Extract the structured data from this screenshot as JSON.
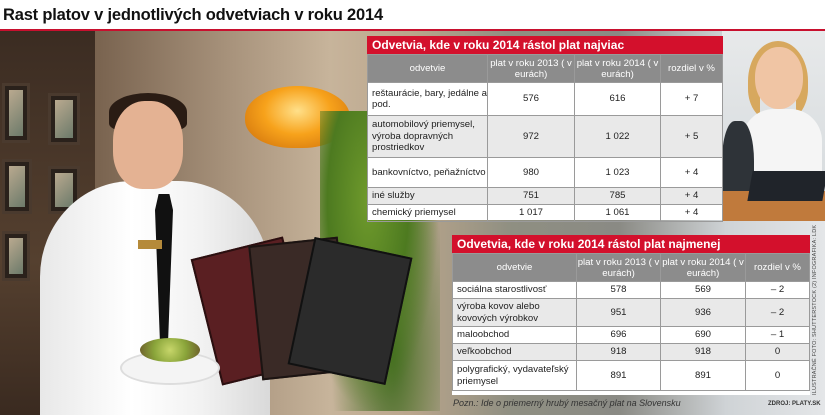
{
  "title": "Rast platov v jednotlivých odvetviach v roku 2014",
  "colors": {
    "accent": "#d3102c",
    "header_gray": "#8c8c8c",
    "row_alt": "#e9e9e9"
  },
  "top_table": {
    "heading": "Odvetvia, kde v roku 2014 rástol plat najviac",
    "columns": [
      "odvetvie",
      "plat v roku 2013 ( v eurách)",
      "plat v roku 2014 ( v eurách)",
      "rozdiel v %"
    ],
    "rows": [
      {
        "sector": "reštaurácie, bary, jedálne a pod.",
        "y2013": "576",
        "y2014": "616",
        "diff": "+ 7"
      },
      {
        "sector": "automobilový priemysel, výroba dopravných prostriedkov",
        "y2013": "972",
        "y2014": "1 022",
        "diff": "+ 5"
      },
      {
        "sector": "bankovníctvo, peňažníctvo",
        "y2013": "980",
        "y2014": "1 023",
        "diff": "+ 4"
      },
      {
        "sector": "iné služby",
        "y2013": "751",
        "y2014": "785",
        "diff": "+ 4"
      },
      {
        "sector": "chemický priemysel",
        "y2013": "1 017",
        "y2014": "1 061",
        "diff": "+ 4"
      }
    ]
  },
  "bottom_table": {
    "heading": "Odvetvia, kde v roku 2014 rástol plat najmenej",
    "columns": [
      "odvetvie",
      "plat v roku 2013 ( v eurách)",
      "plat v roku 2014 ( v eurách)",
      "rozdiel v %"
    ],
    "rows": [
      {
        "sector": "sociálna starostlivosť",
        "y2013": "578",
        "y2014": "569",
        "diff": "– 2"
      },
      {
        "sector": "výroba kovov alebo kovových výrobkov",
        "y2013": "951",
        "y2014": "936",
        "diff": "– 2"
      },
      {
        "sector": "maloobchod",
        "y2013": "696",
        "y2014": "690",
        "diff": "– 1"
      },
      {
        "sector": "veľkoobchod",
        "y2013": "918",
        "y2014": "918",
        "diff": "0"
      },
      {
        "sector": "polygrafický, vydavateľský priemysel",
        "y2013": "891",
        "y2014": "891",
        "diff": "0"
      }
    ]
  },
  "note": "Pozn.: Ide o priemerný hrubý mesačný plat na Slovensku",
  "source": "ZDROJ: PLATY.SK",
  "credit": "ILUSTRAČNÉ FOTO: SHUTTERSTOCK (2) INFOGRAFIKA: LDK"
}
